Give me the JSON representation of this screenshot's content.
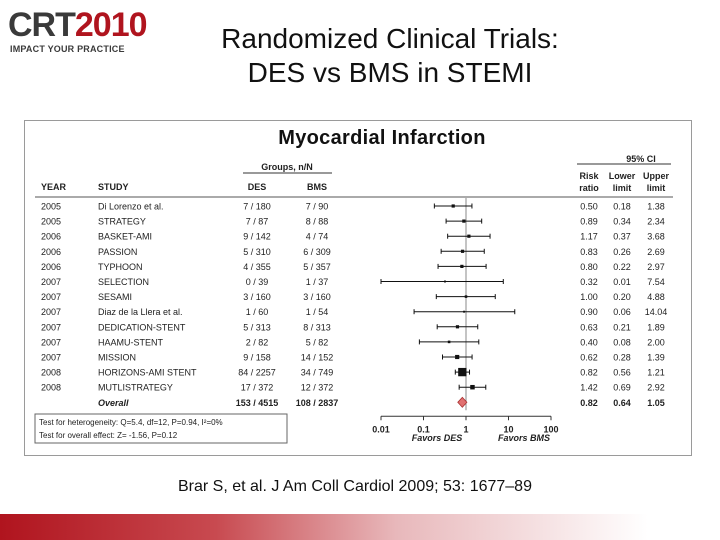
{
  "logo": {
    "crt": "CRT",
    "year": "2010",
    "tagline": "IMPACT YOUR PRACTICE"
  },
  "title": {
    "line1": "Randomized Clinical Trials:",
    "line2": "DES vs BMS in STEMI"
  },
  "citation": "Brar S, et al. J Am Coll Cardiol 2009; 53: 1677–89",
  "colors": {
    "accent": "#b0141e",
    "diamond": "#e07070",
    "grid": "#888888"
  },
  "chart_data": {
    "type": "forest",
    "title": "Myocardial Infarction",
    "headers": {
      "year": "YEAR",
      "study": "STUDY",
      "groups": "Groups, n/N",
      "des": "DES",
      "bms": "BMS",
      "ci": "95% CI",
      "risk_top": "Risk",
      "risk_bottom": "ratio",
      "lower_top": "Lower",
      "lower_bottom": "limit",
      "upper_top": "Upper",
      "upper_bottom": "limit"
    },
    "x_scale": "log",
    "xlim": [
      0.01,
      100
    ],
    "x_ticks": [
      {
        "value": 0.01,
        "label": "0.01"
      },
      {
        "value": 0.1,
        "label": "0.1"
      },
      {
        "value": 1,
        "label": "1"
      },
      {
        "value": 10,
        "label": "10"
      },
      {
        "value": 100,
        "label": "100"
      }
    ],
    "favors_left": "Favors DES",
    "favors_right": "Favors BMS",
    "heterogeneity": "Test for heterogeneity: Q=5.4, df=12, P=0.94, I²=0%",
    "overall_effect": "Test for overall effect: Z= -1.56, P=0.12",
    "rows": [
      {
        "year": "2005",
        "study": "Di Lorenzo et al.",
        "des": "7 / 180",
        "bms": "7 / 90",
        "rr": 0.5,
        "lower": 0.18,
        "upper": 1.38,
        "weight": 1,
        "rr_label": "0.50",
        "lower_label": "0.18",
        "upper_label": "1.38"
      },
      {
        "year": "2005",
        "study": "STRATEGY",
        "des": "7 / 87",
        "bms": "8 / 88",
        "rr": 0.89,
        "lower": 0.34,
        "upper": 2.34,
        "weight": 1,
        "rr_label": "0.89",
        "lower_label": "0.34",
        "upper_label": "2.34"
      },
      {
        "year": "2006",
        "study": "BASKET-AMI",
        "des": "9 / 142",
        "bms": "4 / 74",
        "rr": 1.17,
        "lower": 0.37,
        "upper": 3.68,
        "weight": 1,
        "rr_label": "1.17",
        "lower_label": "0.37",
        "upper_label": "3.68"
      },
      {
        "year": "2006",
        "study": "PASSION",
        "des": "5 / 310",
        "bms": "6 / 309",
        "rr": 0.83,
        "lower": 0.26,
        "upper": 2.69,
        "weight": 1,
        "rr_label": "0.83",
        "lower_label": "0.26",
        "upper_label": "2.69"
      },
      {
        "year": "2006",
        "study": "TYPHOON",
        "des": "4 / 355",
        "bms": "5 / 357",
        "rr": 0.8,
        "lower": 0.22,
        "upper": 2.97,
        "weight": 1,
        "rr_label": "0.80",
        "lower_label": "0.22",
        "upper_label": "2.97"
      },
      {
        "year": "2007",
        "study": "SELECTION",
        "des": "0 / 39",
        "bms": "1 / 37",
        "rr": 0.32,
        "lower": 0.01,
        "upper": 7.54,
        "weight": 0.6,
        "rr_label": "0.32",
        "lower_label": "0.01",
        "upper_label": "7.54"
      },
      {
        "year": "2007",
        "study": "SESAMI",
        "des": "3 / 160",
        "bms": "3 / 160",
        "rr": 1.0,
        "lower": 0.2,
        "upper": 4.88,
        "weight": 0.8,
        "rr_label": "1.00",
        "lower_label": "0.20",
        "upper_label": "4.88"
      },
      {
        "year": "2007",
        "study": "Diaz de la Llera et al.",
        "des": "1 / 60",
        "bms": "1 / 54",
        "rr": 0.9,
        "lower": 0.06,
        "upper": 14.04,
        "weight": 0.6,
        "rr_label": "0.90",
        "lower_label": "0.06",
        "upper_label": "14.04"
      },
      {
        "year": "2007",
        "study": "DEDICATION-STENT",
        "des": "5 / 313",
        "bms": "8 / 313",
        "rr": 0.63,
        "lower": 0.21,
        "upper": 1.89,
        "weight": 1,
        "rr_label": "0.63",
        "lower_label": "0.21",
        "upper_label": "1.89"
      },
      {
        "year": "2007",
        "study": "HAAMU-STENT",
        "des": "2 / 82",
        "bms": "5 / 82",
        "rr": 0.4,
        "lower": 0.08,
        "upper": 2.0,
        "weight": 0.8,
        "rr_label": "0.40",
        "lower_label": "0.08",
        "upper_label": "2.00"
      },
      {
        "year": "2007",
        "study": "MISSION",
        "des": "9 / 158",
        "bms": "14 / 152",
        "rr": 0.62,
        "lower": 0.28,
        "upper": 1.39,
        "weight": 1.3,
        "rr_label": "0.62",
        "lower_label": "0.28",
        "upper_label": "1.39"
      },
      {
        "year": "2008",
        "study": "HORIZONS-AMI STENT",
        "des": "84 / 2257",
        "bms": "34 / 749",
        "rr": 0.82,
        "lower": 0.56,
        "upper": 1.21,
        "weight": 2.6,
        "rr_label": "0.82",
        "lower_label": "0.56",
        "upper_label": "1.21"
      },
      {
        "year": "2008",
        "study": "MUTLISTRATEGY",
        "des": "17 / 372",
        "bms": "12 / 372",
        "rr": 1.42,
        "lower": 0.69,
        "upper": 2.92,
        "weight": 1.4,
        "rr_label": "1.42",
        "lower_label": "0.69",
        "upper_label": "2.92"
      }
    ],
    "overall": {
      "label": "Overall",
      "des": "153 / 4515",
      "bms": "108 / 2837",
      "rr": 0.82,
      "lower": 0.64,
      "upper": 1.05,
      "rr_label": "0.82",
      "lower_label": "0.64",
      "upper_label": "1.05"
    }
  }
}
